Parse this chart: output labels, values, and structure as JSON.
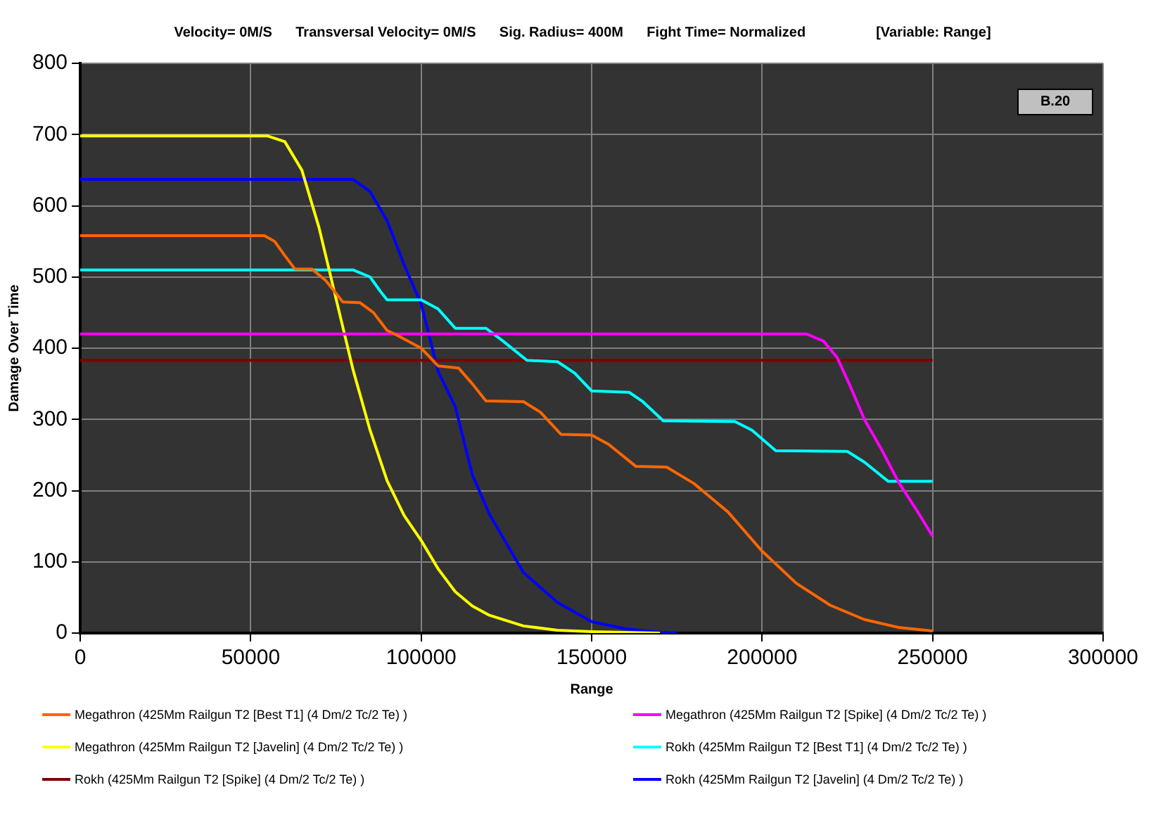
{
  "chart_data": {
    "type": "line",
    "title": "Velocity= 0M/S      Transversal Velocity= 0M/S      Sig. Radius= 400M      Fight Time= Normalized                  [Variable: Range]",
    "xlabel": "Range",
    "ylabel": "Damage Over Time",
    "annotations": [
      "B.20"
    ],
    "xlim": [
      0,
      300000
    ],
    "xticks": [
      0,
      50000,
      100000,
      150000,
      200000,
      250000,
      300000
    ],
    "ylim": [
      0,
      800
    ],
    "yticks": [
      0,
      100,
      200,
      300,
      400,
      500,
      600,
      700,
      800
    ],
    "grid": true,
    "legend": "bottom",
    "marker": "none",
    "line_style": "solid",
    "series": [
      {
        "name": "Megathron (425Mm Railgun T2 [Best T1] (4 Dm/2 Tc/2 Te) )",
        "color": "#ff6600",
        "x": [
          0,
          54000,
          57000,
          60000,
          63000,
          68000,
          72000,
          77000,
          82000,
          86000,
          90000,
          93000,
          100000,
          105000,
          111000,
          115000,
          119000,
          130000,
          135000,
          141000,
          150000,
          155000,
          163000,
          172000,
          180000,
          190000,
          200000,
          210000,
          220000,
          230000,
          240000,
          250000
        ],
        "values": [
          558,
          558,
          550,
          530,
          511,
          511,
          495,
          465,
          464,
          450,
          425,
          418,
          400,
          375,
          372,
          350,
          326,
          325,
          310,
          279,
          278,
          265,
          234,
          233,
          210,
          170,
          115,
          70,
          39,
          19,
          8,
          3
        ]
      },
      {
        "name": "Megathron (425Mm Railgun T2 [Spike] (4 Dm/2 Tc/2 Te) )",
        "color": "#ff00ff",
        "x": [
          0,
          213000,
          218000,
          222000,
          226000,
          230000,
          235000,
          240000,
          245000,
          250000
        ],
        "values": [
          420,
          420,
          410,
          387,
          345,
          300,
          258,
          212,
          175,
          136
        ]
      },
      {
        "name": "Megathron (425Mm Railgun T2 [Javelin] (4 Dm/2 Tc/2 Te) )",
        "color": "#ffff00",
        "x": [
          0,
          55000,
          60000,
          65000,
          70000,
          75000,
          80000,
          85000,
          90000,
          95000,
          100000,
          105000,
          110000,
          115000,
          120000,
          130000,
          140000,
          150000,
          160000,
          170000
        ],
        "values": [
          698,
          698,
          690,
          650,
          570,
          470,
          370,
          285,
          214,
          165,
          130,
          90,
          58,
          38,
          25,
          10,
          4,
          2,
          1,
          0
        ]
      },
      {
        "name": "Rokh (425Mm Railgun T2 [Best T1] (4 Dm/2 Tc/2 Te) )",
        "color": "#00ffff",
        "x": [
          0,
          80000,
          85000,
          88000,
          90000,
          100000,
          105000,
          110000,
          119000,
          124000,
          131000,
          140000,
          145000,
          150000,
          161000,
          165000,
          171000,
          192000,
          197000,
          204000,
          225000,
          230000,
          237000,
          250000
        ],
        "values": [
          510,
          510,
          500,
          480,
          468,
          468,
          455,
          428,
          428,
          410,
          383,
          381,
          365,
          340,
          338,
          325,
          298,
          297,
          285,
          256,
          255,
          240,
          213,
          213
        ]
      },
      {
        "name": "Rokh (425Mm Railgun T2 [Spike] (4 Dm/2 Tc/2 Te) )",
        "color": "#800000",
        "x": [
          0,
          250000
        ],
        "values": [
          383,
          383
        ]
      },
      {
        "name": "Rokh (425Mm Railgun T2 [Javelin] (4 Dm/2 Tc/2 Te) )",
        "color": "#0000ff",
        "x": [
          0,
          80000,
          85000,
          90000,
          95000,
          100000,
          105000,
          110000,
          115000,
          120000,
          125000,
          130000,
          140000,
          150000,
          160000,
          170000,
          175000
        ],
        "values": [
          637,
          637,
          620,
          579,
          517,
          462,
          367,
          318,
          222,
          167,
          126,
          85,
          43,
          16,
          6,
          1,
          0
        ]
      }
    ]
  }
}
